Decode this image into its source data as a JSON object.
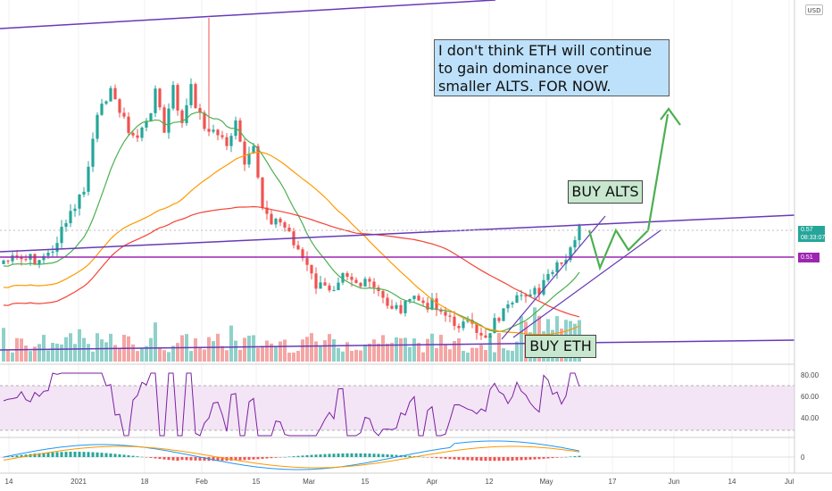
{
  "currency": "USD",
  "annotations": {
    "main": [
      "I don't think ETH will continue",
      "to gain dominance over",
      "smaller ALTS. FOR NOW."
    ],
    "buy_alts": "BUY ALTS",
    "buy_eth": "BUY ETH"
  },
  "price_tags": {
    "last": "0.57",
    "countdown": "08:33:07",
    "line": "0.51"
  },
  "colors": {
    "up": "#26a69a",
    "down": "#ef5350",
    "ma_fast": "#4caf50",
    "ma_mid": "#ff9800",
    "ma_slow": "#f44336",
    "trendline": "#673ab7",
    "level": "#9c27b0",
    "projection": "#4caf50",
    "rsi": "#7b1fa2",
    "rsi_band": "#f3e5f5",
    "macd": "#2196f3",
    "signal": "#ff9800"
  },
  "chart_data": {
    "type": "candlestick",
    "x_ticks": [
      "14",
      "2021",
      "18",
      "Feb",
      "15",
      "Mar",
      "15",
      "Apr",
      "12",
      "May",
      "17",
      "Jun",
      "14",
      "Jul"
    ],
    "price_axis": [],
    "rsi_axis": [
      "80.00",
      "60.00",
      "40.00"
    ],
    "macd_axis": [
      "0"
    ],
    "rsi_levels": [
      70,
      30
    ],
    "volume_profile": "bars"
  }
}
